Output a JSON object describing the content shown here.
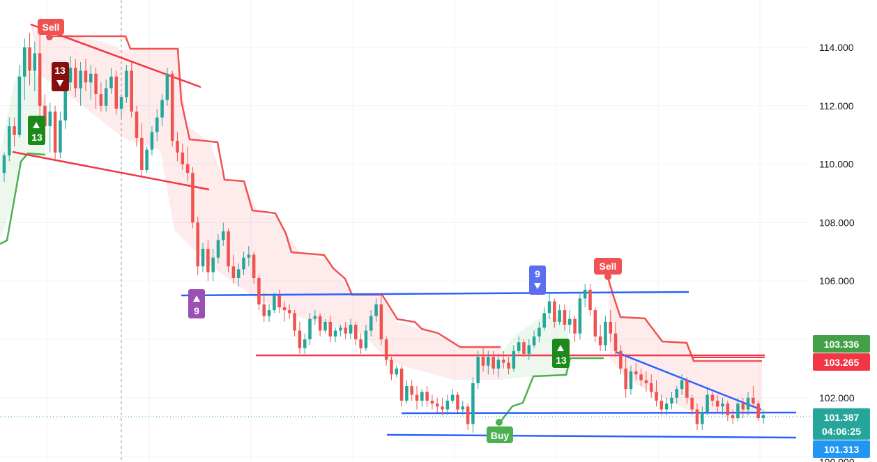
{
  "chart_data": {
    "type": "candlestick",
    "y_axis": {
      "ylim": [
        100.0,
        115.0
      ],
      "ticks": [
        "114.000",
        "112.000",
        "110.000",
        "108.000",
        "106.000",
        "102.000"
      ],
      "bottom_partial_tick": "100.000"
    },
    "grid": true,
    "candles": [
      [
        109.7,
        110.4,
        109.4,
        110.3
      ],
      [
        110.3,
        111.6,
        110.1,
        111.3
      ],
      [
        111.3,
        111.6,
        110.6,
        111.0
      ],
      [
        111.0,
        113.4,
        110.9,
        113.0
      ],
      [
        113.0,
        114.3,
        112.2,
        114.0
      ],
      [
        114.0,
        114.5,
        112.7,
        113.2
      ],
      [
        113.2,
        114.2,
        112.5,
        113.8
      ],
      [
        113.8,
        114.7,
        111.3,
        112.0
      ],
      [
        112.0,
        112.4,
        110.8,
        111.3
      ],
      [
        111.3,
        112.1,
        110.4,
        111.8
      ],
      [
        111.8,
        112.0,
        110.1,
        110.4
      ],
      [
        110.4,
        111.8,
        110.2,
        111.5
      ],
      [
        111.5,
        113.1,
        111.2,
        112.8
      ],
      [
        112.8,
        113.7,
        112.5,
        113.3
      ],
      [
        113.3,
        113.6,
        112.3,
        112.6
      ],
      [
        112.6,
        113.5,
        112.0,
        113.2
      ],
      [
        113.2,
        113.6,
        112.5,
        112.8
      ],
      [
        112.8,
        113.4,
        112.2,
        113.1
      ],
      [
        113.1,
        113.3,
        111.9,
        112.4
      ],
      [
        112.4,
        112.8,
        111.8,
        112.0
      ],
      [
        112.0,
        112.9,
        111.8,
        112.6
      ],
      [
        112.6,
        113.3,
        112.4,
        113.0
      ],
      [
        113.0,
        113.2,
        111.7,
        111.9
      ],
      [
        111.9,
        112.4,
        111.6,
        112.3
      ],
      [
        112.3,
        113.4,
        112.1,
        113.2
      ],
      [
        113.2,
        113.5,
        111.6,
        111.8
      ],
      [
        111.8,
        112.0,
        110.6,
        110.9
      ],
      [
        110.9,
        111.4,
        109.6,
        109.8
      ],
      [
        109.8,
        110.6,
        109.7,
        110.5
      ],
      [
        110.5,
        111.3,
        110.3,
        111.1
      ],
      [
        111.1,
        111.9,
        110.8,
        111.6
      ],
      [
        111.6,
        112.4,
        111.3,
        112.2
      ],
      [
        112.2,
        113.3,
        112.0,
        113.1
      ],
      [
        113.1,
        113.2,
        110.6,
        110.8
      ],
      [
        110.8,
        111.1,
        110.1,
        110.4
      ],
      [
        110.4,
        110.7,
        109.8,
        110.0
      ],
      [
        110.0,
        110.6,
        109.4,
        109.7
      ],
      [
        109.7,
        109.9,
        107.8,
        108.0
      ],
      [
        108.0,
        108.2,
        106.2,
        106.5
      ],
      [
        106.5,
        107.3,
        106.3,
        107.1
      ],
      [
        107.1,
        107.4,
        106.0,
        106.3
      ],
      [
        106.3,
        107.1,
        106.0,
        106.8
      ],
      [
        106.8,
        107.6,
        106.6,
        107.4
      ],
      [
        107.4,
        108.0,
        107.2,
        107.7
      ],
      [
        107.7,
        107.8,
        106.3,
        106.5
      ],
      [
        106.5,
        106.9,
        105.9,
        106.1
      ],
      [
        106.1,
        106.6,
        105.8,
        106.4
      ],
      [
        106.4,
        107.0,
        106.2,
        106.8
      ],
      [
        106.8,
        107.2,
        106.5,
        106.9
      ],
      [
        106.9,
        107.0,
        105.9,
        106.1
      ],
      [
        106.1,
        106.2,
        105.0,
        105.2
      ],
      [
        105.2,
        105.6,
        104.6,
        104.8
      ],
      [
        104.8,
        105.2,
        104.6,
        105.0
      ],
      [
        105.0,
        105.6,
        104.9,
        105.5
      ],
      [
        105.5,
        105.7,
        104.9,
        105.1
      ],
      [
        105.1,
        105.3,
        104.6,
        105.0
      ],
      [
        105.0,
        105.2,
        104.7,
        104.9
      ],
      [
        104.9,
        105.0,
        104.1,
        104.3
      ],
      [
        104.3,
        104.6,
        103.5,
        103.7
      ],
      [
        103.7,
        104.2,
        103.5,
        104.0
      ],
      [
        104.0,
        104.9,
        103.8,
        104.7
      ],
      [
        104.7,
        105.0,
        104.5,
        104.8
      ],
      [
        104.8,
        104.9,
        104.1,
        104.3
      ],
      [
        104.3,
        104.7,
        104.2,
        104.6
      ],
      [
        104.6,
        104.8,
        103.9,
        104.1
      ],
      [
        104.1,
        104.4,
        103.9,
        104.3
      ],
      [
        104.3,
        104.5,
        104.1,
        104.4
      ],
      [
        104.4,
        104.6,
        104.0,
        104.2
      ],
      [
        104.2,
        104.7,
        104.0,
        104.5
      ],
      [
        104.5,
        104.6,
        103.8,
        104.0
      ],
      [
        104.0,
        104.2,
        103.5,
        103.7
      ],
      [
        103.7,
        104.5,
        103.6,
        104.3
      ],
      [
        104.3,
        105.0,
        104.1,
        104.8
      ],
      [
        104.8,
        105.4,
        104.6,
        105.2
      ],
      [
        105.2,
        105.6,
        103.8,
        104.0
      ],
      [
        104.0,
        104.1,
        103.1,
        103.3
      ],
      [
        103.3,
        103.4,
        102.6,
        102.8
      ],
      [
        102.8,
        103.1,
        102.7,
        103.0
      ],
      [
        103.0,
        103.1,
        101.7,
        101.9
      ],
      [
        101.9,
        102.6,
        101.8,
        102.4
      ],
      [
        102.4,
        102.6,
        101.9,
        102.1
      ],
      [
        102.1,
        102.4,
        101.6,
        101.9
      ],
      [
        101.9,
        102.3,
        101.7,
        102.2
      ],
      [
        102.2,
        102.4,
        101.7,
        101.9
      ],
      [
        101.9,
        102.1,
        101.6,
        101.8
      ],
      [
        101.8,
        102.0,
        101.5,
        101.7
      ],
      [
        101.7,
        102.0,
        101.4,
        101.6
      ],
      [
        101.6,
        102.1,
        101.4,
        101.9
      ],
      [
        101.9,
        102.3,
        101.8,
        102.1
      ],
      [
        102.1,
        102.2,
        101.5,
        101.6
      ],
      [
        101.6,
        101.9,
        101.4,
        101.7
      ],
      [
        101.7,
        101.8,
        100.9,
        101.1
      ],
      [
        101.1,
        102.7,
        100.8,
        102.5
      ],
      [
        102.5,
        103.6,
        102.3,
        103.4
      ],
      [
        103.4,
        103.7,
        102.9,
        103.1
      ],
      [
        103.1,
        103.6,
        102.8,
        103.4
      ],
      [
        103.4,
        103.6,
        102.8,
        103.0
      ],
      [
        103.0,
        103.5,
        102.7,
        103.3
      ],
      [
        103.3,
        103.6,
        103.0,
        103.2
      ],
      [
        103.2,
        103.4,
        102.8,
        103.0
      ],
      [
        103.0,
        103.8,
        102.9,
        103.6
      ],
      [
        103.6,
        104.1,
        103.5,
        103.9
      ],
      [
        103.9,
        104.0,
        103.4,
        103.5
      ],
      [
        103.5,
        104.0,
        103.3,
        103.8
      ],
      [
        103.8,
        104.3,
        103.7,
        104.1
      ],
      [
        104.1,
        104.6,
        103.9,
        104.4
      ],
      [
        104.4,
        105.1,
        104.3,
        104.9
      ],
      [
        104.9,
        105.6,
        104.7,
        105.3
      ],
      [
        105.3,
        105.4,
        104.4,
        104.6
      ],
      [
        104.6,
        105.2,
        104.5,
        105.0
      ],
      [
        105.0,
        105.2,
        104.3,
        104.5
      ],
      [
        104.5,
        105.0,
        104.2,
        104.7
      ],
      [
        104.7,
        104.8,
        103.9,
        104.2
      ],
      [
        104.2,
        105.6,
        104.0,
        105.4
      ],
      [
        105.4,
        105.9,
        105.1,
        105.7
      ],
      [
        105.7,
        105.9,
        104.8,
        105.0
      ],
      [
        105.0,
        105.1,
        103.9,
        104.1
      ],
      [
        104.1,
        104.5,
        103.6,
        103.8
      ],
      [
        103.8,
        104.8,
        103.6,
        104.6
      ],
      [
        104.6,
        105.0,
        103.9,
        104.2
      ],
      [
        104.2,
        104.6,
        103.4,
        103.6
      ],
      [
        103.6,
        103.8,
        102.8,
        103.0
      ],
      [
        103.0,
        103.5,
        102.0,
        102.3
      ],
      [
        102.3,
        103.1,
        102.1,
        102.9
      ],
      [
        102.9,
        103.2,
        102.6,
        102.8
      ],
      [
        102.8,
        103.0,
        102.4,
        102.6
      ],
      [
        102.6,
        102.9,
        102.2,
        102.5
      ],
      [
        102.5,
        102.8,
        102.0,
        102.2
      ],
      [
        102.2,
        102.6,
        101.7,
        101.9
      ],
      [
        101.9,
        102.1,
        101.4,
        101.6
      ],
      [
        101.6,
        102.0,
        101.4,
        101.8
      ],
      [
        101.8,
        102.2,
        101.6,
        102.0
      ],
      [
        102.0,
        102.4,
        101.8,
        102.3
      ],
      [
        102.3,
        102.8,
        102.1,
        102.6
      ],
      [
        102.6,
        102.7,
        101.8,
        102.0
      ],
      [
        102.0,
        102.1,
        101.4,
        101.6
      ],
      [
        101.6,
        101.8,
        100.9,
        101.1
      ],
      [
        101.1,
        101.7,
        100.9,
        101.5
      ],
      [
        101.5,
        102.3,
        101.4,
        102.1
      ],
      [
        102.1,
        102.2,
        101.7,
        101.9
      ],
      [
        101.9,
        102.1,
        101.5,
        101.7
      ],
      [
        101.7,
        102.0,
        101.4,
        101.8
      ],
      [
        101.8,
        101.9,
        101.2,
        101.4
      ],
      [
        101.4,
        101.6,
        101.1,
        101.3
      ],
      [
        101.3,
        102.0,
        101.2,
        101.8
      ],
      [
        101.8,
        102.0,
        101.3,
        101.6
      ],
      [
        101.6,
        102.2,
        101.4,
        102.0
      ],
      [
        102.0,
        102.4,
        101.7,
        101.8
      ],
      [
        101.8,
        101.9,
        101.2,
        101.3
      ],
      [
        101.3,
        101.6,
        101.1,
        101.4
      ]
    ],
    "price_labels": {
      "upper_green": "103.336",
      "upper_red": "103.265",
      "current_price": "101.387",
      "countdown": "04:06:25",
      "lower_blue": "101.313"
    },
    "signals": {
      "sell_1": "Sell",
      "sell_2": "Sell",
      "buy_1": "Buy",
      "td_13_down_red": "13",
      "td_13_up_green_left": "13",
      "td_9_up_purple": "9",
      "td_9_down_blue": "9",
      "td_13_up_green_right": "13"
    },
    "colors": {
      "bull": "#26a69a",
      "bear": "#ef5350",
      "supertrend_red": "#f05252",
      "supertrend_green": "#4caf50",
      "trendline_blue": "#2962ff",
      "trendline_red": "#f23645",
      "grid": "#f0f3fa",
      "axis_text": "#131722"
    }
  }
}
